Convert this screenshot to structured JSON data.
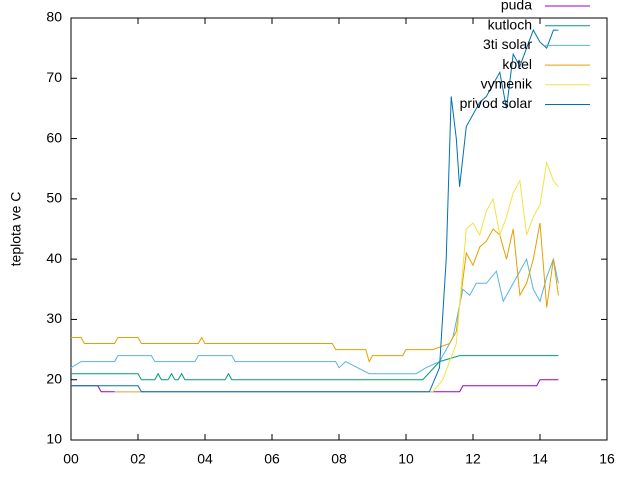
{
  "chart_data": {
    "type": "line",
    "ylabel": "teplota ve C",
    "xlim": [
      0,
      16
    ],
    "xticks": [
      {
        "value": 0,
        "label": "00"
      },
      {
        "value": 2,
        "label": "02"
      },
      {
        "value": 4,
        "label": "04"
      },
      {
        "value": 6,
        "label": "06"
      },
      {
        "value": 8,
        "label": "08"
      },
      {
        "value": 10,
        "label": "10"
      },
      {
        "value": 12,
        "label": "12"
      },
      {
        "value": 14,
        "label": "14"
      },
      {
        "value": 16,
        "label": "16"
      }
    ],
    "ylim": [
      10,
      80
    ],
    "yticks": [
      10,
      20,
      30,
      40,
      50,
      60,
      70,
      80
    ],
    "legend": "top-right",
    "series": [
      {
        "name": "puda",
        "color": "#9400d3",
        "x": [
          0,
          0.8,
          0.9,
          11.6,
          11.7,
          13.9,
          14.0,
          14.55
        ],
        "values": [
          19,
          19,
          18,
          18,
          19,
          19,
          20,
          20
        ]
      },
      {
        "name": "kutloch",
        "color": "#009e73",
        "x": [
          0,
          2.0,
          2.1,
          2.5,
          2.6,
          2.7,
          2.9,
          3.0,
          3.1,
          3.2,
          3.3,
          3.4,
          4.6,
          4.7,
          4.8,
          10.5,
          11.0,
          11.6,
          14.55
        ],
        "values": [
          21,
          21,
          20,
          20,
          21,
          20,
          20,
          21,
          20,
          20,
          21,
          20,
          20,
          21,
          20,
          20,
          23,
          24,
          24
        ]
      },
      {
        "name": "3ti solar",
        "color": "#56b4e9",
        "x": [
          0,
          0.3,
          1.3,
          1.4,
          2.4,
          2.5,
          3.7,
          3.8,
          4.8,
          4.9,
          7.9,
          8.0,
          8.2,
          8.9,
          10.3,
          10.6,
          11.0,
          11.4,
          11.7,
          11.9,
          12.1,
          12.4,
          12.7,
          12.9,
          13.2,
          13.4,
          13.6,
          13.8,
          14.0,
          14.2,
          14.4,
          14.55
        ],
        "values": [
          22,
          23,
          23,
          24,
          24,
          23,
          23,
          24,
          24,
          23,
          23,
          22,
          23,
          21,
          21,
          22,
          23,
          27,
          35,
          34,
          36,
          36,
          38,
          33,
          36,
          38,
          40,
          35,
          33,
          37,
          40,
          36
        ]
      },
      {
        "name": "kotel",
        "color": "#e69f00",
        "x": [
          0,
          0.3,
          0.4,
          1.3,
          1.4,
          2.0,
          2.1,
          3.8,
          3.9,
          4.0,
          7.8,
          7.9,
          8.8,
          8.9,
          9.0,
          9.9,
          10.0,
          10.8,
          11.3,
          11.5,
          11.8,
          12.0,
          12.2,
          12.4,
          12.6,
          12.8,
          13.0,
          13.2,
          13.4,
          13.6,
          13.8,
          14.0,
          14.2,
          14.4,
          14.55
        ],
        "values": [
          27,
          27,
          26,
          26,
          27,
          27,
          26,
          26,
          27,
          26,
          26,
          25,
          25,
          23,
          24,
          24,
          25,
          25,
          26,
          28,
          41,
          39,
          42,
          43,
          45,
          44,
          40,
          45,
          34,
          36,
          40,
          46,
          32,
          40,
          34
        ]
      },
      {
        "name": "vymenik",
        "color": "#f0e442",
        "x": [
          1.3,
          2.2,
          2.3,
          10.8,
          11.1,
          11.5,
          11.8,
          12.0,
          12.2,
          12.4,
          12.6,
          12.8,
          13.0,
          13.2,
          13.4,
          13.6,
          13.8,
          14.0,
          14.2,
          14.4,
          14.55
        ],
        "values": [
          18,
          18,
          18,
          18,
          20,
          26,
          45,
          46,
          44,
          48,
          50,
          44,
          47,
          51,
          53,
          44,
          47,
          49,
          56,
          53,
          52
        ]
      },
      {
        "name": "privod solar",
        "color": "#0072b2",
        "x": [
          0,
          2.0,
          2.1,
          10.7,
          11.0,
          11.2,
          11.35,
          11.5,
          11.6,
          11.8,
          12.0,
          12.2,
          12.4,
          12.6,
          12.8,
          13.0,
          13.2,
          13.4,
          13.6,
          13.8,
          14.0,
          14.2,
          14.4,
          14.55
        ],
        "values": [
          19,
          19,
          18,
          18,
          22,
          40,
          67,
          60,
          52,
          62,
          64,
          66,
          67,
          69,
          71,
          65,
          74,
          72,
          75,
          78,
          76,
          75,
          78,
          78
        ]
      }
    ]
  }
}
